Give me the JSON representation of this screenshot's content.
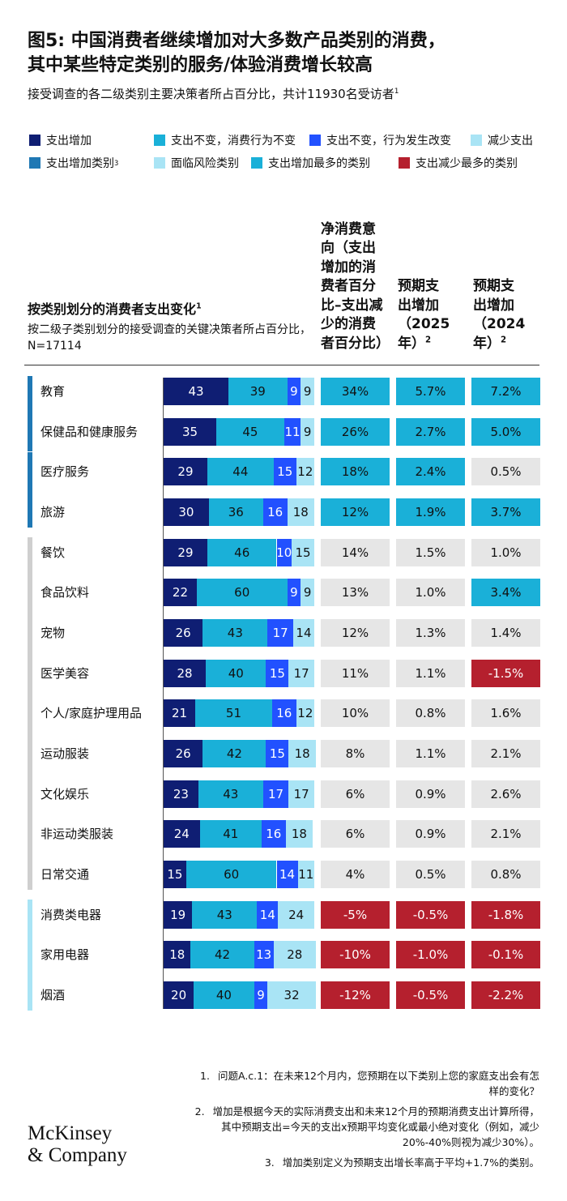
{
  "header": {
    "title_lines": [
      "图5: 中国消费者继续增加对大多数产品类别的消费，",
      "其中某些特定类别的服务/体验消费增长较高"
    ],
    "subtitle": "接受调查的各二级类别主要决策者所占百分比，共计11930名受访者",
    "subtitle_note": "1"
  },
  "legend_extra": [
    {
      "label": "支出增加类别",
      "note": "3",
      "color": "#1f78b4"
    },
    {
      "label": "面临风险类别",
      "color": "#a9e4f5"
    },
    {
      "label": "支出增加最多的类别",
      "color": "#1ab0d8"
    },
    {
      "label": "支出减少最多的类别",
      "color": "#b5202e"
    }
  ],
  "chart_data": {
    "type": "bar",
    "stacked": true,
    "orientation": "horizontal",
    "xlim": [
      0,
      100
    ],
    "categories": [
      "教育",
      "保健品和健康服务",
      "医疗服务",
      "旅游",
      "餐饮",
      "食品饮料",
      "宠物",
      "医学美容",
      "个人/家庭护理用品",
      "运动服装",
      "文化娱乐",
      "非运动类服装",
      "日常交通",
      "消费类电器",
      "家用电器",
      "烟酒"
    ],
    "series": [
      {
        "name": "支出增加",
        "color": "#0f1e73",
        "values": [
          43,
          35,
          29,
          30,
          29,
          22,
          26,
          28,
          21,
          26,
          23,
          24,
          15,
          19,
          18,
          20
        ]
      },
      {
        "name": "支出不变，消费行为不变",
        "color": "#1ab0d8",
        "values": [
          39,
          45,
          44,
          36,
          46,
          60,
          43,
          40,
          51,
          42,
          43,
          41,
          60,
          43,
          42,
          40
        ]
      },
      {
        "name": "支出不变，行为发生改变",
        "color": "#2251ff",
        "values": [
          9,
          11,
          15,
          16,
          10,
          9,
          17,
          15,
          16,
          15,
          17,
          16,
          14,
          14,
          13,
          9
        ]
      },
      {
        "name": "减少支出",
        "color": "#a9e4f5",
        "values": [
          9,
          9,
          12,
          18,
          15,
          9,
          14,
          17,
          12,
          18,
          17,
          18,
          11,
          24,
          28,
          32
        ]
      }
    ]
  },
  "table": {
    "title": "按类别划分的消费者支出变化",
    "title_note": "1",
    "subtitle": "按二级子类别划分的接受调查的关键决策者所占百分比，N=17114",
    "columns": [
      {
        "text": "净消费意向（支出增加的消费者百分比–支出减少的消费者百分比）"
      },
      {
        "text": "预期支出增加（2025年）",
        "note": "2"
      },
      {
        "text": "预期支出增加（2024年）",
        "note": "2"
      }
    ],
    "rows": [
      {
        "side_color": "#1f78b4",
        "cells": [
          {
            "text": "34%",
            "color": "#1ab0d8"
          },
          {
            "text": "5.7%",
            "color": "#1ab0d8"
          },
          {
            "text": "7.2%",
            "color": "#1ab0d8"
          }
        ]
      },
      {
        "side_color": "#1f78b4",
        "cells": [
          {
            "text": "26%",
            "color": "#1ab0d8"
          },
          {
            "text": "2.7%",
            "color": "#1ab0d8"
          },
          {
            "text": "5.0%",
            "color": "#1ab0d8"
          }
        ]
      },
      {
        "side_color": "#1f78b4",
        "cells": [
          {
            "text": "18%",
            "color": "#1ab0d8"
          },
          {
            "text": "2.4%",
            "color": "#1ab0d8"
          },
          {
            "text": "0.5%",
            "color": "#e6e6e6"
          }
        ]
      },
      {
        "side_color": "#1f78b4",
        "cells": [
          {
            "text": "12%",
            "color": "#1ab0d8"
          },
          {
            "text": "1.9%",
            "color": "#1ab0d8"
          },
          {
            "text": "3.7%",
            "color": "#1ab0d8"
          }
        ]
      },
      {
        "side_color": "#cfcfcf",
        "cells": [
          {
            "text": "14%",
            "color": "#e6e6e6"
          },
          {
            "text": "1.5%",
            "color": "#e6e6e6"
          },
          {
            "text": "1.0%",
            "color": "#e6e6e6"
          }
        ]
      },
      {
        "side_color": "#cfcfcf",
        "cells": [
          {
            "text": "13%",
            "color": "#e6e6e6"
          },
          {
            "text": "1.0%",
            "color": "#e6e6e6"
          },
          {
            "text": "3.4%",
            "color": "#1ab0d8"
          }
        ]
      },
      {
        "side_color": "#cfcfcf",
        "cells": [
          {
            "text": "12%",
            "color": "#e6e6e6"
          },
          {
            "text": "1.3%",
            "color": "#e6e6e6"
          },
          {
            "text": "1.4%",
            "color": "#e6e6e6"
          }
        ]
      },
      {
        "side_color": "#cfcfcf",
        "cells": [
          {
            "text": "11%",
            "color": "#e6e6e6"
          },
          {
            "text": "1.1%",
            "color": "#e6e6e6"
          },
          {
            "text": "-1.5%",
            "color": "#b5202e"
          }
        ]
      },
      {
        "side_color": "#cfcfcf",
        "cells": [
          {
            "text": "10%",
            "color": "#e6e6e6"
          },
          {
            "text": "0.8%",
            "color": "#e6e6e6"
          },
          {
            "text": "1.6%",
            "color": "#e6e6e6"
          }
        ]
      },
      {
        "side_color": "#cfcfcf",
        "cells": [
          {
            "text": "8%",
            "color": "#e6e6e6"
          },
          {
            "text": "1.1%",
            "color": "#e6e6e6"
          },
          {
            "text": "2.1%",
            "color": "#e6e6e6"
          }
        ]
      },
      {
        "side_color": "#cfcfcf",
        "cells": [
          {
            "text": "6%",
            "color": "#e6e6e6"
          },
          {
            "text": "0.9%",
            "color": "#e6e6e6"
          },
          {
            "text": "2.6%",
            "color": "#e6e6e6"
          }
        ]
      },
      {
        "side_color": "#cfcfcf",
        "cells": [
          {
            "text": "6%",
            "color": "#e6e6e6"
          },
          {
            "text": "0.9%",
            "color": "#e6e6e6"
          },
          {
            "text": "2.1%",
            "color": "#e6e6e6"
          }
        ]
      },
      {
        "side_color": "#cfcfcf",
        "cells": [
          {
            "text": "4%",
            "color": "#e6e6e6"
          },
          {
            "text": "0.5%",
            "color": "#e6e6e6"
          },
          {
            "text": "0.8%",
            "color": "#e6e6e6"
          }
        ]
      },
      {
        "side_color": "#a9e4f5",
        "cells": [
          {
            "text": "-5%",
            "color": "#b5202e"
          },
          {
            "text": "-0.5%",
            "color": "#b5202e"
          },
          {
            "text": "-1.8%",
            "color": "#b5202e"
          }
        ]
      },
      {
        "side_color": "#a9e4f5",
        "cells": [
          {
            "text": "-10%",
            "color": "#b5202e"
          },
          {
            "text": "-1.0%",
            "color": "#b5202e"
          },
          {
            "text": "-0.1%",
            "color": "#b5202e"
          }
        ]
      },
      {
        "side_color": "#a9e4f5",
        "cells": [
          {
            "text": "-12%",
            "color": "#b5202e"
          },
          {
            "text": "-0.5%",
            "color": "#b5202e"
          },
          {
            "text": "-2.2%",
            "color": "#b5202e"
          }
        ]
      }
    ]
  },
  "footnotes": [
    {
      "number": "1.",
      "text": "问题A.c.1：在未来12个月内，您预期在以下类别上您的家庭支出会有怎样的变化？"
    },
    {
      "number": "2.",
      "text": "增加是根据今天的实际消费支出和未来12个月的预期消费支出计算所得，其中预期支出=今天的支出x预期平均变化或最小绝对变化（例如，减少20%-40%则视为减少30%）。"
    },
    {
      "number": "3.",
      "text": "增加类别定义为预期支出增长率高于平均+1.7%的类别。"
    }
  ],
  "logo": [
    "McKinsey",
    "& Company"
  ]
}
